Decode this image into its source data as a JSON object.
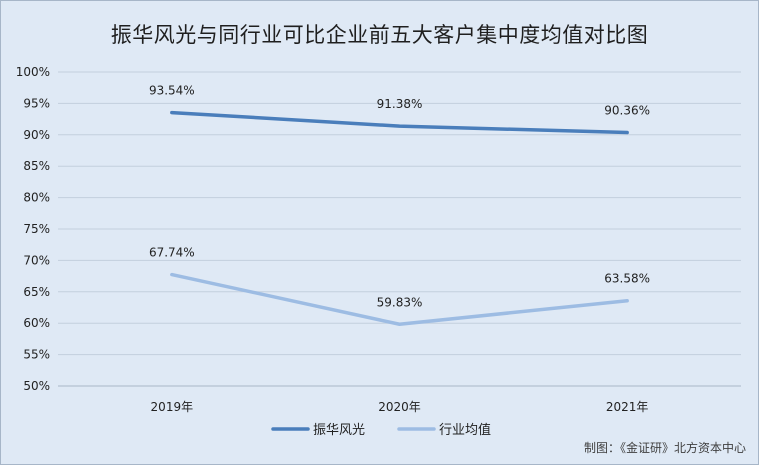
{
  "chart_data": {
    "type": "line",
    "title": "振华风光与同行业可比企业前五大客户集中度均值对比图",
    "categories": [
      "2019年",
      "2020年",
      "2021年"
    ],
    "series": [
      {
        "name": "振华风光",
        "values": [
          93.54,
          91.38,
          90.36
        ],
        "labels": [
          "93.54%",
          "91.38%",
          "90.36%"
        ],
        "color": "#4a7ebb"
      },
      {
        "name": "行业均值",
        "values": [
          67.74,
          59.83,
          63.58
        ],
        "labels": [
          "67.74%",
          "59.83%",
          "63.58%"
        ],
        "color": "#9dbce3"
      }
    ],
    "ylim": [
      50,
      100
    ],
    "yticks": [
      "50%",
      "55%",
      "60%",
      "65%",
      "70%",
      "75%",
      "80%",
      "85%",
      "90%",
      "95%",
      "100%"
    ],
    "grid": true,
    "legend_position": "bottom"
  },
  "credit": "制图：《金证研》北方资本中心"
}
